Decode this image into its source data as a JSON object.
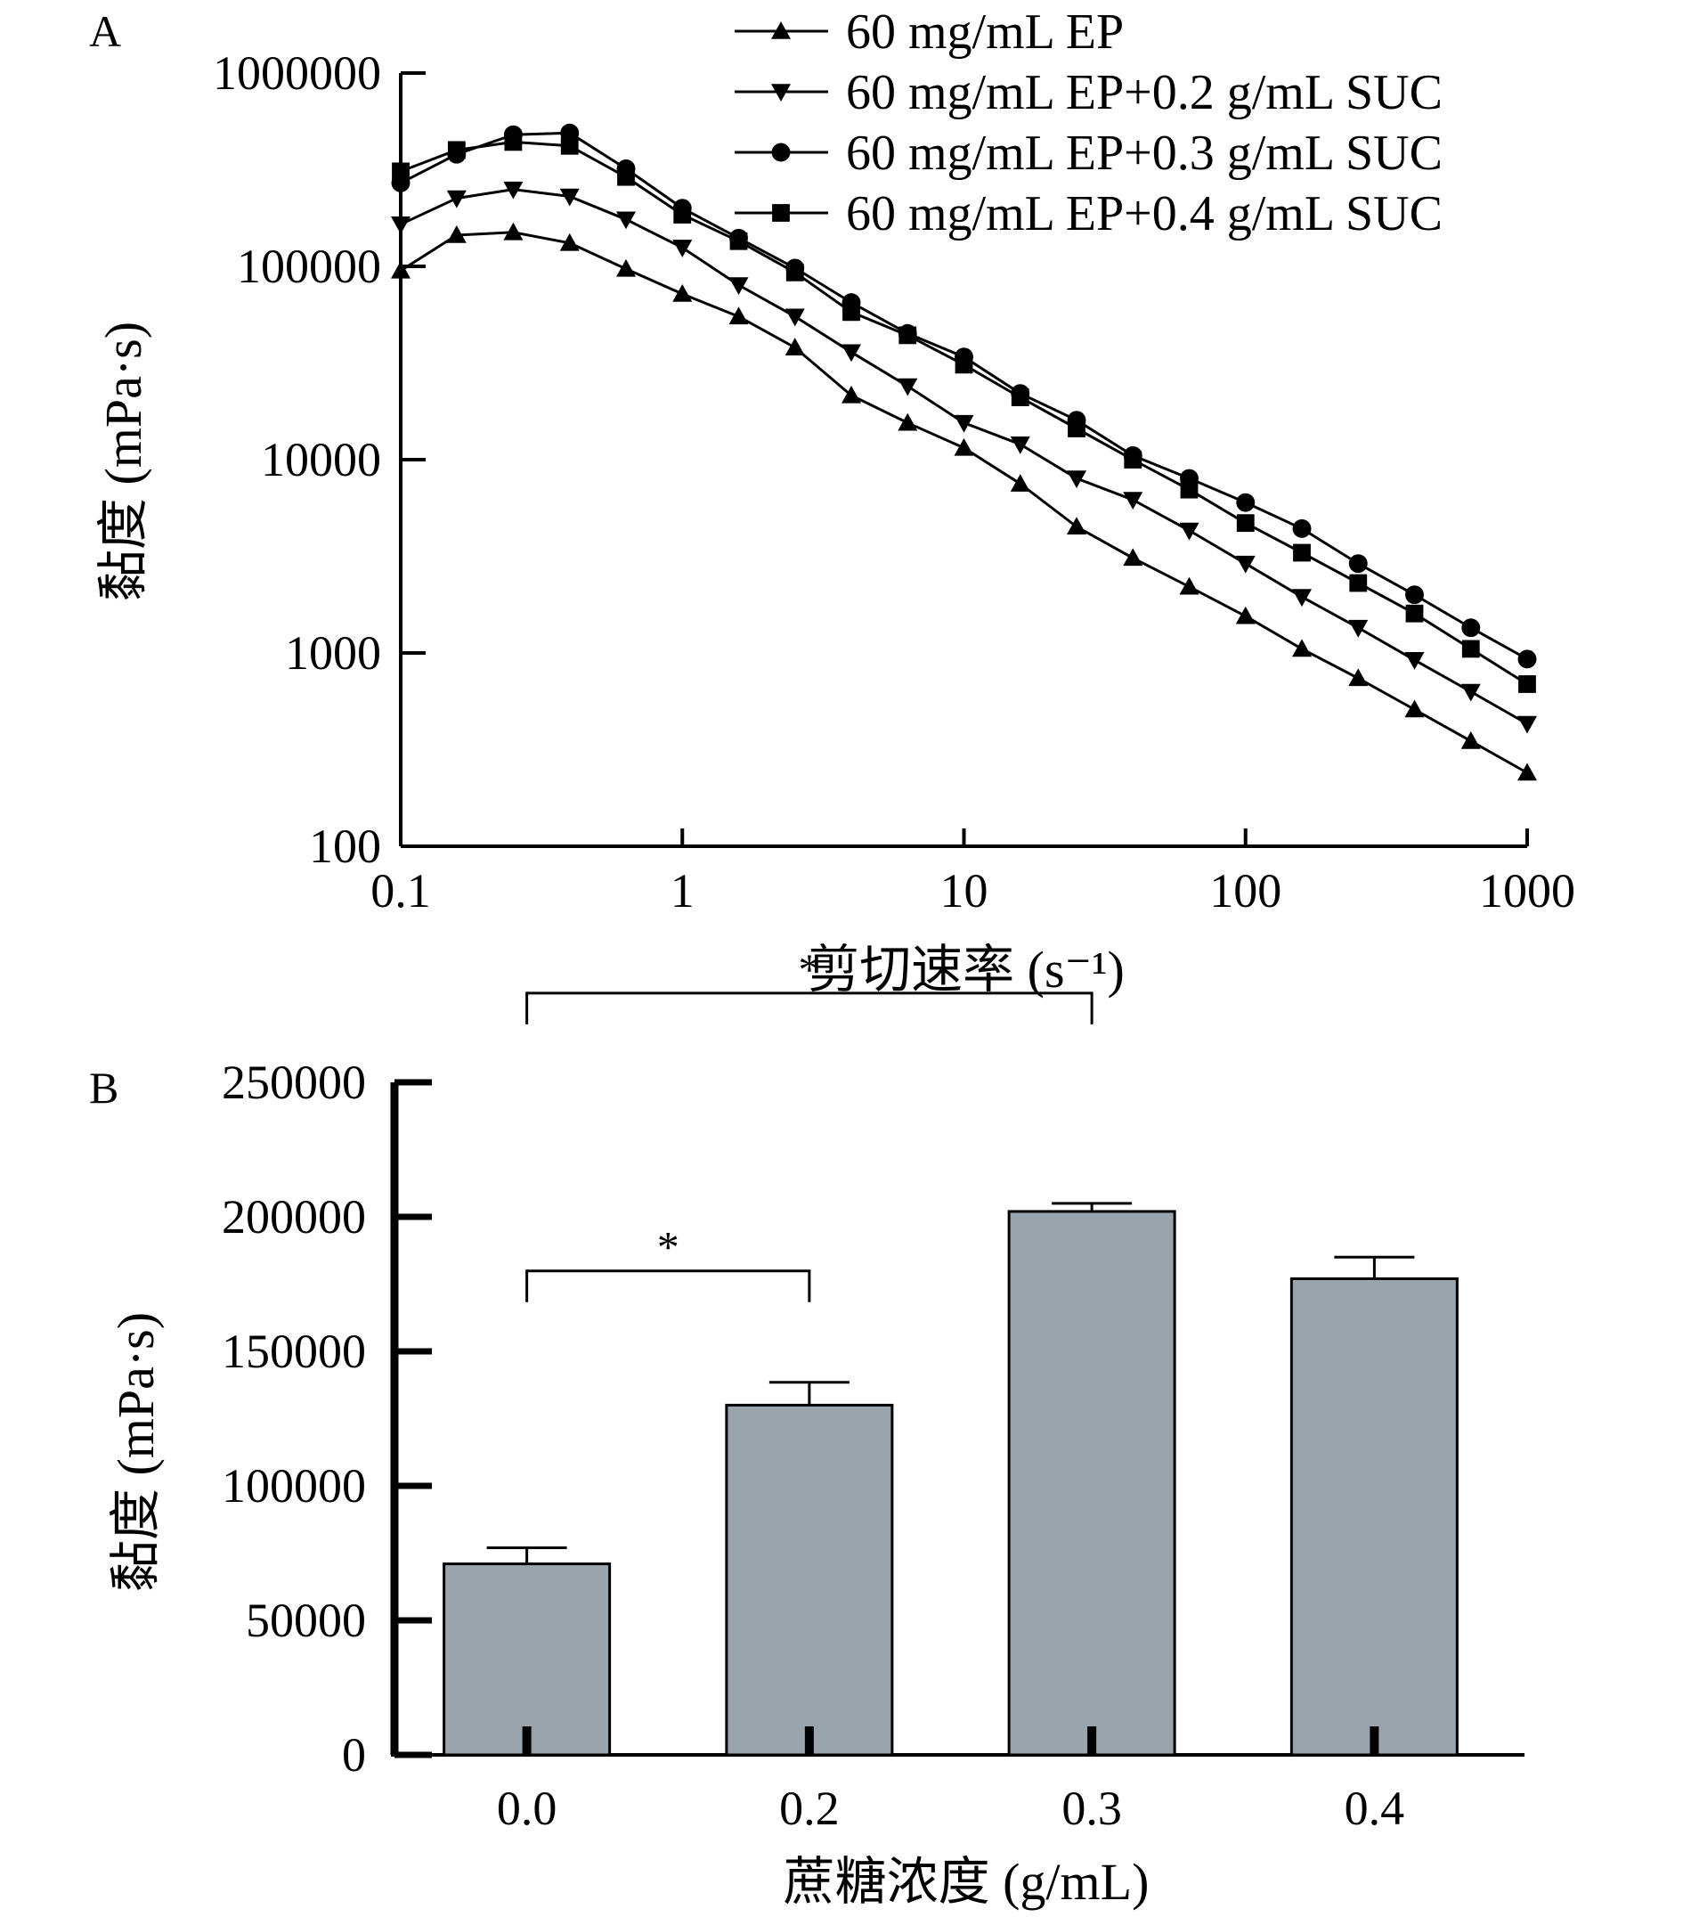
{
  "chart_data": [
    {
      "panel": "A",
      "type": "line",
      "xlabel": "剪切速率 (s⁻¹)",
      "ylabel": "黏度 (mPa·s)",
      "x_scale": "log",
      "y_scale": "log",
      "xlim": [
        0.1,
        1000
      ],
      "ylim": [
        100,
        1000000
      ],
      "x_ticks": [
        "0.1",
        "1",
        "10",
        "100",
        "1000"
      ],
      "y_ticks": [
        "100",
        "1000",
        "10000",
        "100000",
        "1000000"
      ],
      "legend_position": "top-right",
      "x": [
        0.1,
        0.158,
        0.251,
        0.398,
        0.631,
        1,
        1.585,
        2.512,
        3.981,
        6.31,
        10,
        15.85,
        25.12,
        39.81,
        63.1,
        100,
        158.5,
        251.2,
        398.1,
        631,
        1000
      ],
      "series": [
        {
          "name": "60 mg/mL EP",
          "marker": "triangle-up",
          "values": [
            95000,
            145000,
            150000,
            132000,
            97000,
            72000,
            55000,
            38000,
            21500,
            15500,
            11500,
            7500,
            4500,
            3100,
            2200,
            1550,
            1050,
            740,
            510,
            350,
            240
          ]
        },
        {
          "name": "60 mg/mL EP+0.2 g/mL SUC",
          "marker": "triangle-down",
          "values": [
            165000,
            225000,
            250000,
            230000,
            175000,
            125000,
            80000,
            55000,
            36000,
            24000,
            15500,
            12000,
            8000,
            6200,
            4300,
            2900,
            1950,
            1350,
            920,
            630,
            430
          ]
        },
        {
          "name": "60 mg/mL EP+0.3 g/mL SUC",
          "marker": "circle",
          "values": [
            270000,
            380000,
            480000,
            490000,
            320000,
            200000,
            140000,
            98000,
            65000,
            45000,
            34000,
            22000,
            16000,
            10500,
            8000,
            6000,
            4400,
            2900,
            2000,
            1350,
            930
          ]
        },
        {
          "name": "60 mg/mL EP+0.4 g/mL SUC",
          "marker": "square",
          "values": [
            310000,
            400000,
            440000,
            420000,
            290000,
            185000,
            135000,
            93000,
            58000,
            44000,
            31000,
            21000,
            14500,
            10000,
            7000,
            4700,
            3300,
            2300,
            1600,
            1050,
            690
          ]
        }
      ]
    },
    {
      "panel": "B",
      "type": "bar",
      "xlabel": "蔗糖浓度 (g/mL)",
      "ylabel": "黏度 (mPa·s)",
      "ylim": [
        0,
        250000
      ],
      "y_ticks": [
        "0",
        "50000",
        "100000",
        "150000",
        "200000",
        "250000"
      ],
      "categories": [
        "0.0",
        "0.2",
        "0.3",
        "0.4"
      ],
      "values": [
        71000,
        130000,
        202000,
        177000
      ],
      "errors": [
        6000,
        8500,
        3000,
        8000
      ],
      "bar_color": "#9aa4ad",
      "significance": [
        {
          "from": 0,
          "to": 1,
          "label": "*"
        },
        {
          "from": 0,
          "to": 2,
          "label": "*"
        }
      ]
    }
  ]
}
